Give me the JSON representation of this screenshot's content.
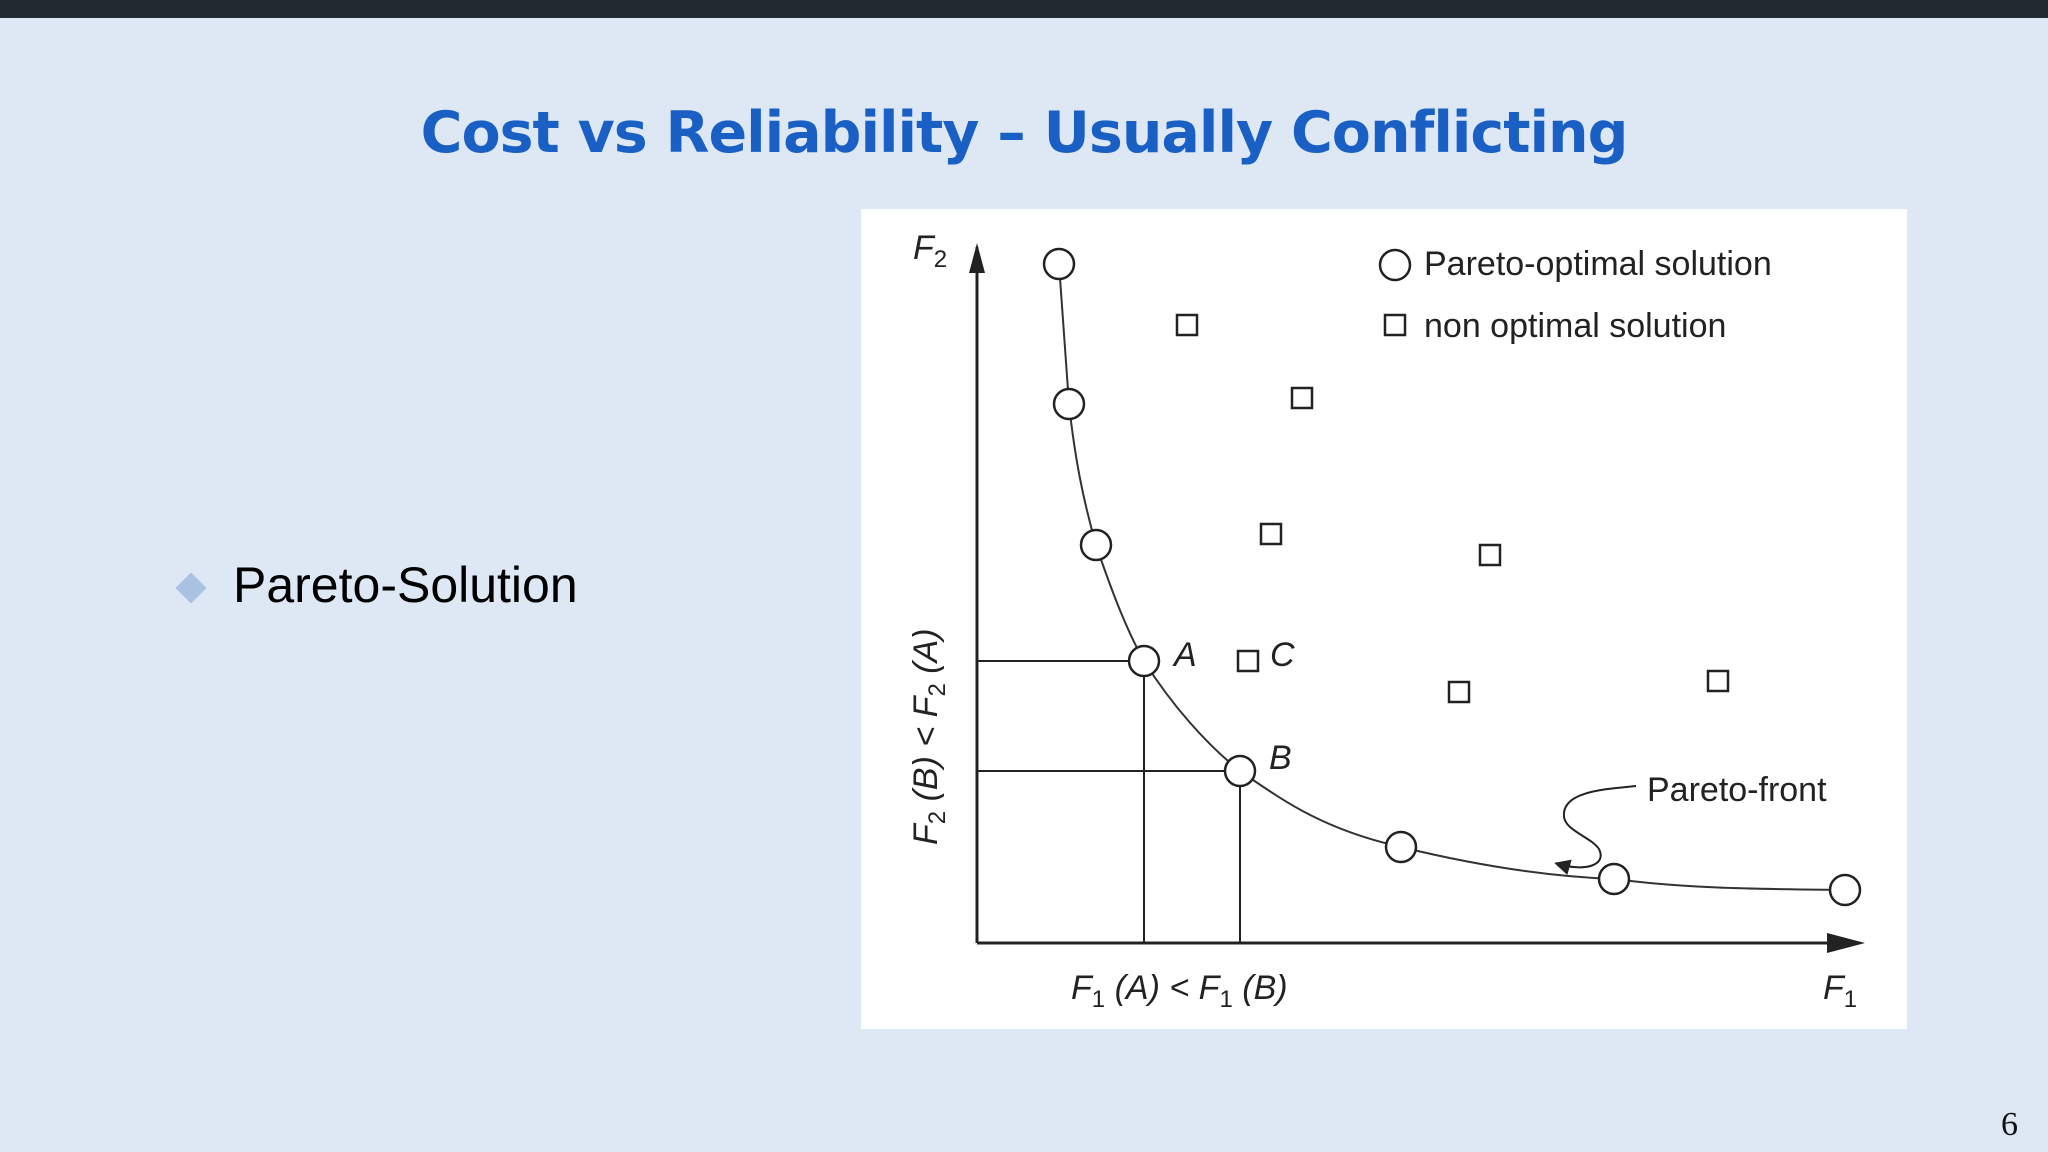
{
  "slide": {
    "title": "Cost vs Reliability – Usually Conflicting",
    "bullet": "Pareto-Solution",
    "page_number": "6"
  },
  "diagram": {
    "legend": {
      "pareto": "Pareto-optimal solution",
      "nonopt": "non optimal solution"
    },
    "axis_y_main": "F",
    "axis_y_sub": "2",
    "axis_x_main": "F",
    "axis_x_sub": "1",
    "point_a": "A",
    "point_b": "B",
    "point_c": "C",
    "front_label": "Pareto-front",
    "x_compare": {
      "f": "F",
      "s1": "1",
      "a": " (A) < ",
      "s2": "1",
      "b": " (B)"
    },
    "y_compare": {
      "f": "F",
      "s1": "2",
      "a": " (B) < ",
      "s2": "2",
      "b": " (A)"
    }
  }
}
